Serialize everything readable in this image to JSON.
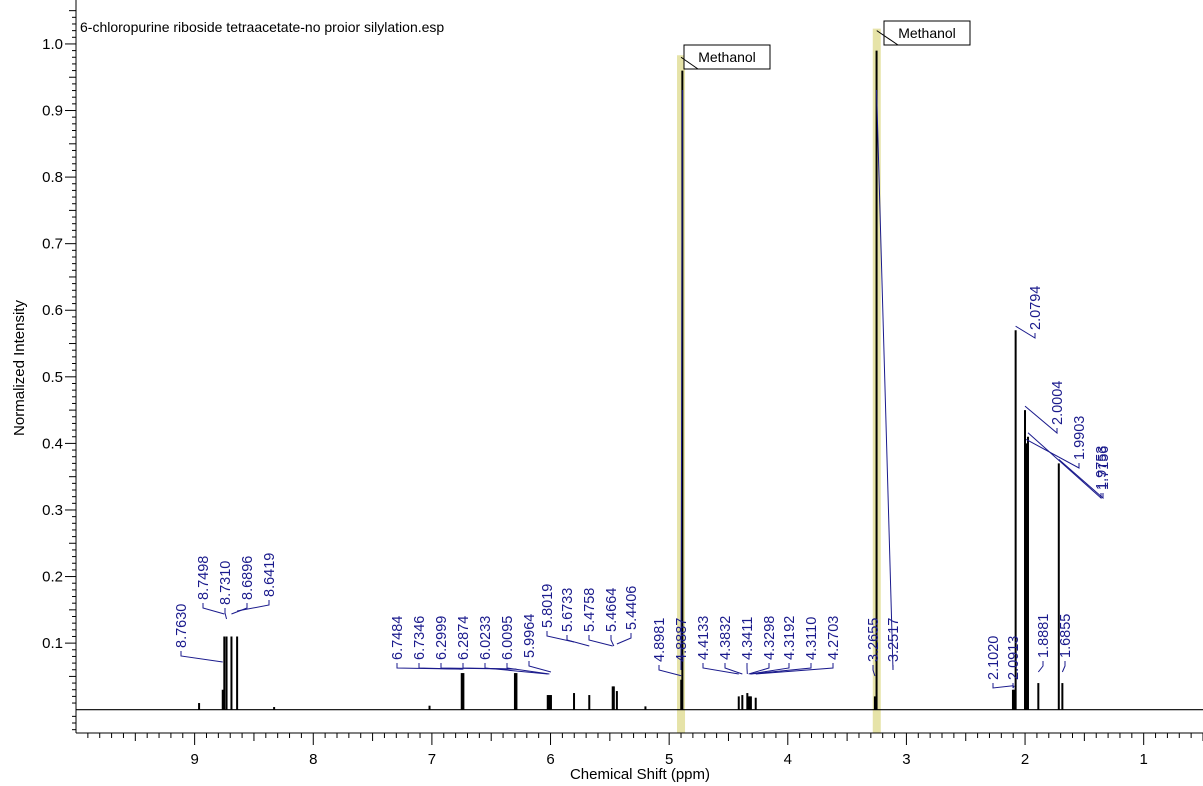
{
  "chart_data": {
    "type": "line",
    "title": "6-chloropurine riboside tetraacetate-no proior silylation.esp",
    "xlabel": "Chemical Shift (ppm)",
    "ylabel": "Normalized Intensity",
    "xlim": [
      10.0,
      0.5
    ],
    "ylim": [
      -0.035,
      1.06
    ],
    "x_ticks": [
      "9",
      "8",
      "7",
      "6",
      "5",
      "4",
      "3",
      "2",
      "1"
    ],
    "y_ticks": [
      "0.1",
      "0.2",
      "0.3",
      "0.4",
      "0.5",
      "0.6",
      "0.7",
      "0.8",
      "0.9",
      "1.0"
    ],
    "grid": false,
    "line_color": "#000000",
    "label_color": "#1a1a8c",
    "solvent_band_color": "#e6e3a8",
    "peaks": [
      {
        "x": 8.9625,
        "y": 0.01
      },
      {
        "x": 8.763,
        "y": 0.03
      },
      {
        "x": 8.7498,
        "y": 0.11
      },
      {
        "x": 8.731,
        "y": 0.11
      },
      {
        "x": 8.6896,
        "y": 0.11
      },
      {
        "x": 8.6419,
        "y": 0.11
      },
      {
        "x": 8.33,
        "y": 0.004
      },
      {
        "x": 7.02,
        "y": 0.006
      },
      {
        "x": 6.7484,
        "y": 0.055
      },
      {
        "x": 6.7346,
        "y": 0.055
      },
      {
        "x": 6.2999,
        "y": 0.055
      },
      {
        "x": 6.2874,
        "y": 0.055
      },
      {
        "x": 6.0233,
        "y": 0.022
      },
      {
        "x": 6.0095,
        "y": 0.022
      },
      {
        "x": 5.9964,
        "y": 0.022
      },
      {
        "x": 5.8019,
        "y": 0.025
      },
      {
        "x": 5.6733,
        "y": 0.022
      },
      {
        "x": 5.4758,
        "y": 0.035
      },
      {
        "x": 5.4664,
        "y": 0.035
      },
      {
        "x": 5.4406,
        "y": 0.028
      },
      {
        "x": 5.2,
        "y": 0.005
      },
      {
        "x": 4.8981,
        "y": 0.045
      },
      {
        "x": 4.8887,
        "y": 0.96
      },
      {
        "x": 4.4133,
        "y": 0.02
      },
      {
        "x": 4.3832,
        "y": 0.022
      },
      {
        "x": 4.3411,
        "y": 0.025
      },
      {
        "x": 4.3298,
        "y": 0.02
      },
      {
        "x": 4.3192,
        "y": 0.02
      },
      {
        "x": 4.311,
        "y": 0.02
      },
      {
        "x": 4.2703,
        "y": 0.018
      },
      {
        "x": 3.2655,
        "y": 0.02
      },
      {
        "x": 3.2517,
        "y": 0.99
      },
      {
        "x": 2.102,
        "y": 0.03
      },
      {
        "x": 2.0913,
        "y": 0.03
      },
      {
        "x": 2.0794,
        "y": 0.57
      },
      {
        "x": 2.0004,
        "y": 0.45
      },
      {
        "x": 1.9903,
        "y": 0.4
      },
      {
        "x": 1.9753,
        "y": 0.41
      },
      {
        "x": 1.8881,
        "y": 0.04
      },
      {
        "x": 1.7156,
        "y": 0.37
      },
      {
        "x": 1.6855,
        "y": 0.04
      }
    ],
    "peak_labels": [
      "8.7630",
      "8.7498",
      "8.7310",
      "8.6896",
      "8.6419",
      "6.7484",
      "6.7346",
      "6.2999",
      "6.2874",
      "6.0233",
      "6.0095",
      "5.9964",
      "5.8019",
      "5.6733",
      "5.4758",
      "5.4664",
      "5.4406",
      "4.8981",
      "4.8887",
      "4.4133",
      "4.3832",
      "4.3411",
      "4.3298",
      "4.3192",
      "4.3110",
      "4.2703",
      "3.2655",
      "3.2517",
      "2.1020",
      "2.0913",
      "2.0794",
      "2.0004",
      "1.9903",
      "1.9753",
      "1.8881",
      "1.7156",
      "1.6855"
    ],
    "annotations": [
      {
        "text": "Methanol",
        "x": 4.9,
        "y": 0.98
      },
      {
        "text": "Methanol",
        "x": 3.25,
        "y": 1.02
      }
    ]
  }
}
